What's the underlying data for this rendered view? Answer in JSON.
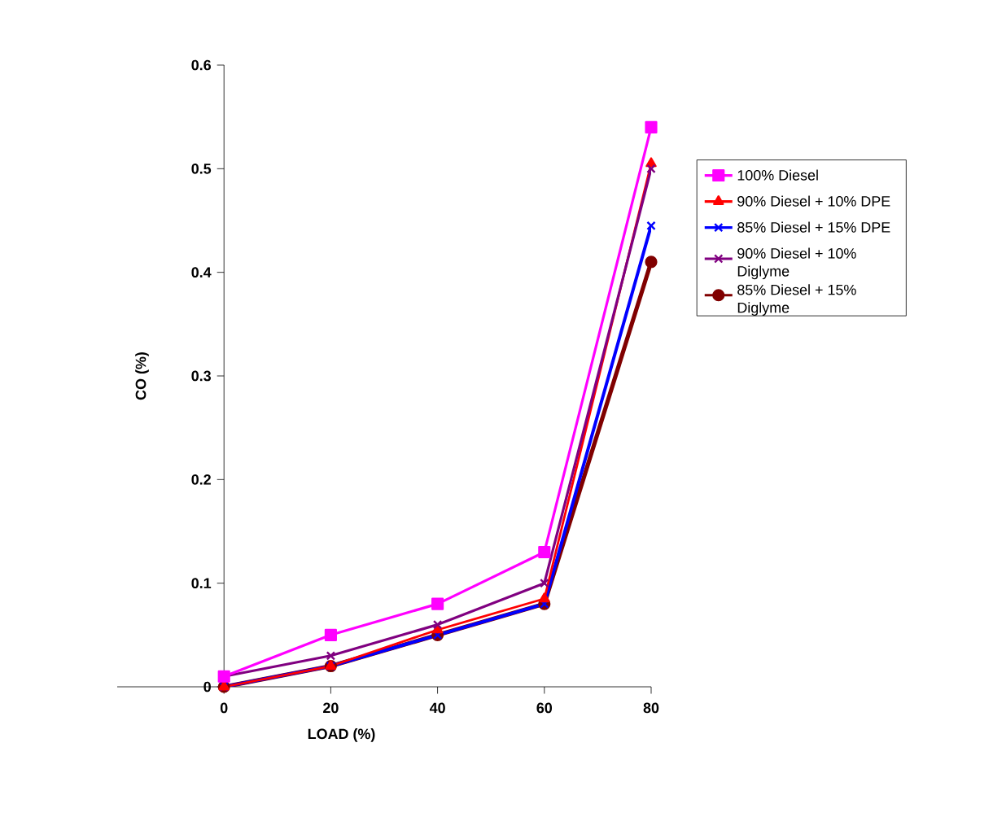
{
  "chart_data": {
    "type": "line",
    "xlabel": "LOAD (%)",
    "ylabel": "CO (%)",
    "x": [
      0,
      20,
      40,
      60,
      80
    ],
    "xlim": [
      -20,
      80
    ],
    "xticks": [
      0,
      20,
      40,
      60,
      80
    ],
    "ylim": [
      0,
      0.6
    ],
    "yticks": [
      0,
      0.1,
      0.2,
      0.3,
      0.4,
      0.5,
      0.6
    ],
    "grid": false,
    "legend": "right",
    "line_style": "solid",
    "series": [
      {
        "name": "100% Diesel",
        "color": "#ff00ff",
        "marker": "square",
        "values": [
          0.01,
          0.05,
          0.08,
          0.13,
          0.54
        ]
      },
      {
        "name": "90% Diesel + 10% DPE",
        "color": "#ff0000",
        "marker": "triangle",
        "values": [
          0,
          0.02,
          0.055,
          0.085,
          0.505
        ]
      },
      {
        "name": "85% Diesel + 15% DPE",
        "color": "#0000ff",
        "marker": "cross",
        "values": [
          0,
          0.02,
          0.05,
          0.08,
          0.445
        ]
      },
      {
        "name": "90% Diesel + 10% Diglyme",
        "color": "#800080",
        "marker": "cross",
        "values": [
          0.01,
          0.03,
          0.06,
          0.1,
          0.5
        ]
      },
      {
        "name": "85% Diesel + 15% Diglyme",
        "color": "#800000",
        "marker": "circle",
        "values": [
          0,
          0.02,
          0.05,
          0.08,
          0.41
        ]
      }
    ]
  }
}
